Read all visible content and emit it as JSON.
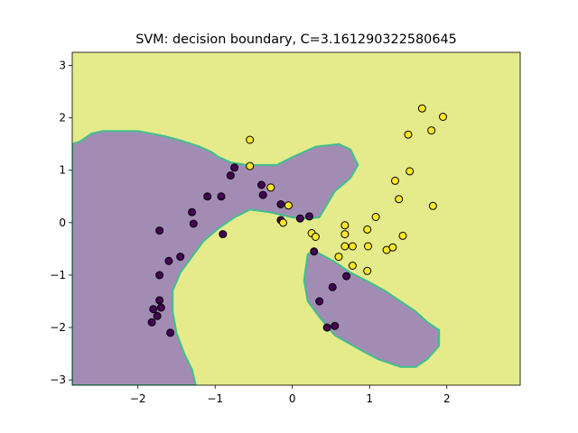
{
  "chart_data": {
    "type": "scatter",
    "title": "SVM: decision boundary, C=3.161290322580645",
    "xlabel": "",
    "ylabel": "",
    "xlim": [
      -2.85,
      2.95
    ],
    "ylim": [
      -3.1,
      3.25
    ],
    "xticks": [
      {
        "value": -2,
        "label": "−2"
      },
      {
        "value": -1,
        "label": "−1"
      },
      {
        "value": 0,
        "label": "0"
      },
      {
        "value": 1,
        "label": "1"
      },
      {
        "value": 2,
        "label": "2"
      }
    ],
    "yticks": [
      {
        "value": -3,
        "label": "−3"
      },
      {
        "value": -2,
        "label": "−2"
      },
      {
        "value": -1,
        "label": "−1"
      },
      {
        "value": 0,
        "label": "0"
      },
      {
        "value": 1,
        "label": "1"
      },
      {
        "value": 2,
        "label": "2"
      },
      {
        "value": 3,
        "label": "3"
      }
    ],
    "grid": false,
    "colors": {
      "region_class_0": "#a38cb4",
      "region_class_1": "#e5eb8a",
      "boundary_edge": "#3fbf8f",
      "point_class_0": "#440154",
      "point_class_1": "#fde725",
      "point_edge": "#000000"
    },
    "regions": {
      "class_0_upper_left": [
        [
          -2.85,
          1.5
        ],
        [
          -2.75,
          1.55
        ],
        [
          -2.6,
          1.7
        ],
        [
          -2.45,
          1.75
        ],
        [
          -2.0,
          1.75
        ],
        [
          -1.65,
          1.65
        ],
        [
          -1.4,
          1.55
        ],
        [
          -1.2,
          1.45
        ],
        [
          -1.05,
          1.35
        ],
        [
          -0.95,
          1.25
        ],
        [
          -0.8,
          1.15
        ],
        [
          -0.6,
          1.1
        ],
        [
          -0.2,
          1.1
        ],
        [
          0.0,
          1.25
        ],
        [
          0.15,
          1.35
        ],
        [
          0.3,
          1.45
        ],
        [
          0.6,
          1.5
        ],
        [
          0.75,
          1.4
        ],
        [
          0.85,
          1.1
        ],
        [
          0.75,
          0.85
        ],
        [
          0.55,
          0.6
        ],
        [
          0.45,
          0.35
        ],
        [
          0.35,
          0.1
        ],
        [
          0.2,
          0.08
        ],
        [
          0.0,
          0.1
        ],
        [
          -0.3,
          0.2
        ],
        [
          -0.55,
          0.25
        ],
        [
          -0.75,
          0.1
        ],
        [
          -0.95,
          -0.1
        ],
        [
          -1.15,
          -0.35
        ],
        [
          -1.3,
          -0.65
        ],
        [
          -1.45,
          -0.95
        ],
        [
          -1.55,
          -1.3
        ],
        [
          -1.55,
          -1.7
        ],
        [
          -1.5,
          -2.1
        ],
        [
          -1.4,
          -2.5
        ],
        [
          -1.3,
          -2.8
        ],
        [
          -1.25,
          -3.1
        ],
        [
          -2.85,
          -3.1
        ]
      ],
      "class_0_lower_right": [
        [
          0.2,
          -0.6
        ],
        [
          0.3,
          -0.55
        ],
        [
          0.55,
          -0.75
        ],
        [
          0.75,
          -0.95
        ],
        [
          0.95,
          -1.1
        ],
        [
          1.2,
          -1.3
        ],
        [
          1.4,
          -1.5
        ],
        [
          1.6,
          -1.7
        ],
        [
          1.75,
          -1.9
        ],
        [
          1.9,
          -2.05
        ],
        [
          1.9,
          -2.35
        ],
        [
          1.75,
          -2.6
        ],
        [
          1.6,
          -2.75
        ],
        [
          1.4,
          -2.75
        ],
        [
          1.1,
          -2.6
        ],
        [
          0.85,
          -2.4
        ],
        [
          0.55,
          -2.15
        ],
        [
          0.35,
          -1.8
        ],
        [
          0.2,
          -1.5
        ],
        [
          0.15,
          -1.1
        ]
      ]
    },
    "series": [
      {
        "class": 0,
        "points": [
          [
            -0.75,
            1.05
          ],
          [
            -0.8,
            0.9
          ],
          [
            -0.4,
            0.72
          ],
          [
            -0.38,
            0.53
          ],
          [
            -1.1,
            0.5
          ],
          [
            -0.92,
            0.5
          ],
          [
            -0.15,
            0.35
          ],
          [
            -0.15,
            0.05
          ],
          [
            0.1,
            0.08
          ],
          [
            0.22,
            0.12
          ],
          [
            -1.3,
            0.2
          ],
          [
            -1.28,
            -0.02
          ],
          [
            -1.72,
            -0.15
          ],
          [
            -0.9,
            -0.22
          ],
          [
            -1.45,
            -0.65
          ],
          [
            -1.6,
            -0.73
          ],
          [
            -1.72,
            -1.0
          ],
          [
            -1.72,
            -1.48
          ],
          [
            -1.7,
            -1.62
          ],
          [
            -1.8,
            -1.65
          ],
          [
            -1.75,
            -1.78
          ],
          [
            -1.82,
            -1.9
          ],
          [
            -1.58,
            -2.1
          ],
          [
            0.28,
            -0.55
          ],
          [
            0.7,
            -1.02
          ],
          [
            0.52,
            -1.23
          ],
          [
            0.35,
            -1.5
          ],
          [
            0.45,
            -2.0
          ],
          [
            0.55,
            -1.97
          ]
        ]
      },
      {
        "class": 1,
        "points": [
          [
            -0.55,
            1.58
          ],
          [
            -0.55,
            1.08
          ],
          [
            -0.28,
            0.67
          ],
          [
            -0.05,
            0.33
          ],
          [
            -0.12,
            0.0
          ],
          [
            0.25,
            -0.2
          ],
          [
            0.3,
            -0.27
          ],
          [
            0.68,
            -0.05
          ],
          [
            0.68,
            -0.22
          ],
          [
            0.68,
            -0.45
          ],
          [
            0.78,
            -0.45
          ],
          [
            0.78,
            -0.82
          ],
          [
            0.6,
            -0.65
          ],
          [
            0.97,
            -0.13
          ],
          [
            0.98,
            -0.45
          ],
          [
            0.97,
            -0.92
          ],
          [
            1.08,
            0.11
          ],
          [
            1.22,
            -0.52
          ],
          [
            1.3,
            -0.47
          ],
          [
            1.43,
            -0.25
          ],
          [
            1.33,
            0.8
          ],
          [
            1.38,
            0.45
          ],
          [
            1.52,
            0.98
          ],
          [
            1.5,
            1.68
          ],
          [
            1.68,
            2.18
          ],
          [
            1.8,
            1.76
          ],
          [
            1.95,
            2.02
          ],
          [
            1.82,
            0.32
          ]
        ]
      }
    ]
  }
}
